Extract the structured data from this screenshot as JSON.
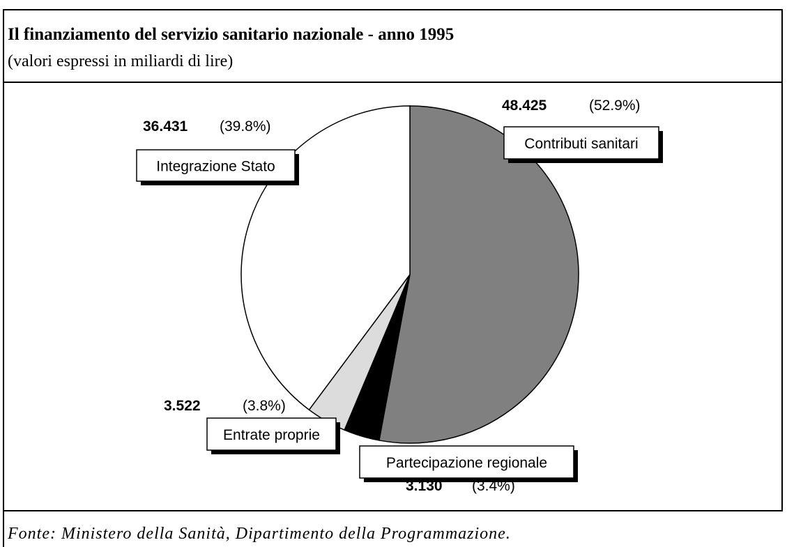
{
  "chart_data": {
    "type": "pie",
    "title": "Il finanziamento del servizio sanitario nazionale - anno 1995",
    "subtitle": "(valori espressi in miliardi di lire)",
    "source": "Fonte: Ministero della Sanità, Dipartimento della Programmazione.",
    "categories": [
      "Contributi sanitari",
      "Partecipazione regionale",
      "Entrate proprie",
      "Integrazione Stato"
    ],
    "values": [
      48425,
      3130,
      3522,
      36431
    ],
    "value_labels": [
      "48.425",
      "3.130",
      "3.522",
      "36.431"
    ],
    "percentages": [
      52.9,
      3.4,
      3.8,
      39.8
    ],
    "percentage_labels": [
      "(52.9%)",
      "(3.4%)",
      "(3.8%)",
      "(39.8%)"
    ],
    "colors": [
      "#808080",
      "#000000",
      "#dcdcdc",
      "#ffffff"
    ]
  }
}
